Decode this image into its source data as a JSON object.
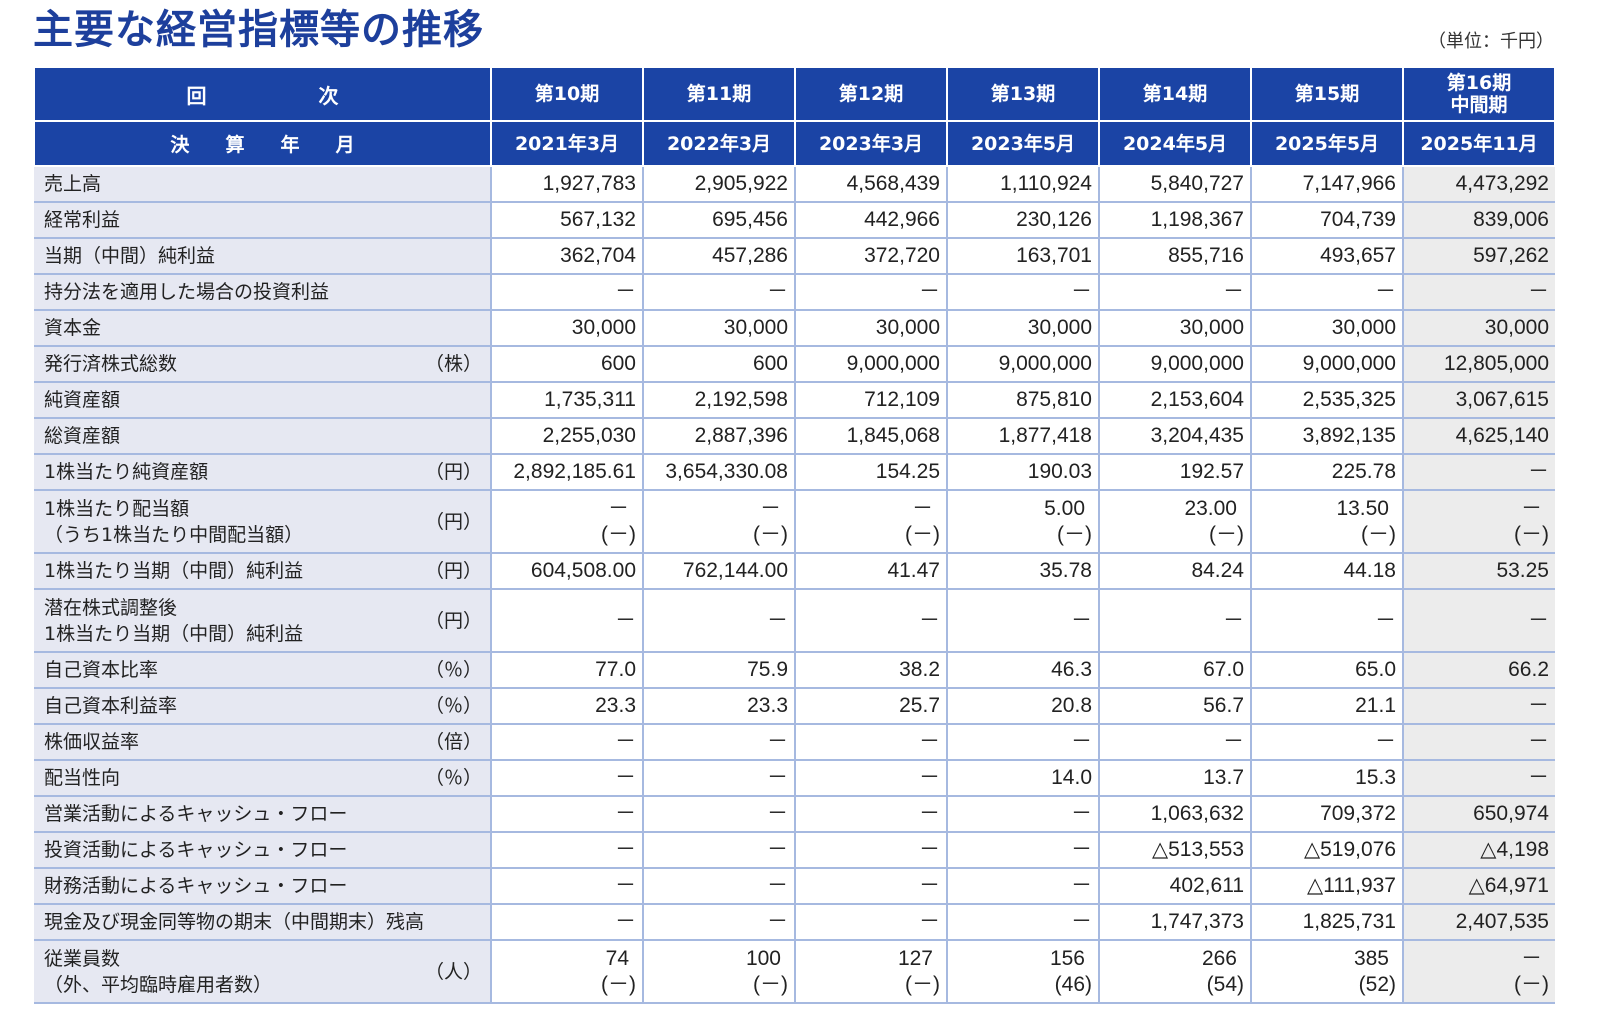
{
  "title": "主要な経営指標等の推移",
  "unit": "（単位：千円）",
  "colors": {
    "title": "#1d3f9c",
    "header_bg": "#1b44a5",
    "label_bg": "#e6e8f2",
    "interim_bg": "#ececec",
    "grid": "#a6b9e0",
    "text": "#222222"
  },
  "table": {
    "header_rows": [
      {
        "label": "回　　次",
        "cells": [
          [
            "第10期"
          ],
          [
            "第11期"
          ],
          [
            "第12期"
          ],
          [
            "第13期"
          ],
          [
            "第14期"
          ],
          [
            "第15期"
          ],
          [
            "第16期",
            "中間期"
          ]
        ]
      },
      {
        "label": "決　算　年　月",
        "cells": [
          [
            "2021年3月"
          ],
          [
            "2022年3月"
          ],
          [
            "2023年3月"
          ],
          [
            "2023年5月"
          ],
          [
            "2024年5月"
          ],
          [
            "2025年5月"
          ],
          [
            "2025年11月"
          ]
        ]
      }
    ],
    "rows": [
      {
        "label": [
          "売上高"
        ],
        "unit": "",
        "values": [
          [
            "1,927,783"
          ],
          [
            "2,905,922"
          ],
          [
            "4,568,439"
          ],
          [
            "1,110,924"
          ],
          [
            "5,840,727"
          ],
          [
            "7,147,966"
          ],
          [
            "4,473,292"
          ]
        ]
      },
      {
        "label": [
          "経常利益"
        ],
        "unit": "",
        "values": [
          [
            "567,132"
          ],
          [
            "695,456"
          ],
          [
            "442,966"
          ],
          [
            "230,126"
          ],
          [
            "1,198,367"
          ],
          [
            "704,739"
          ],
          [
            "839,006"
          ]
        ]
      },
      {
        "label": [
          "当期（中間）純利益"
        ],
        "unit": "",
        "values": [
          [
            "362,704"
          ],
          [
            "457,286"
          ],
          [
            "372,720"
          ],
          [
            "163,701"
          ],
          [
            "855,716"
          ],
          [
            "493,657"
          ],
          [
            "597,262"
          ]
        ]
      },
      {
        "label": [
          "持分法を適用した場合の投資利益"
        ],
        "unit": "",
        "values": [
          [
            "－"
          ],
          [
            "－"
          ],
          [
            "－"
          ],
          [
            "－"
          ],
          [
            "－"
          ],
          [
            "－"
          ],
          [
            "－"
          ]
        ]
      },
      {
        "label": [
          "資本金"
        ],
        "unit": "",
        "values": [
          [
            "30,000"
          ],
          [
            "30,000"
          ],
          [
            "30,000"
          ],
          [
            "30,000"
          ],
          [
            "30,000"
          ],
          [
            "30,000"
          ],
          [
            "30,000"
          ]
        ]
      },
      {
        "label": [
          "発行済株式総数"
        ],
        "unit": "（株）",
        "values": [
          [
            "600"
          ],
          [
            "600"
          ],
          [
            "9,000,000"
          ],
          [
            "9,000,000"
          ],
          [
            "9,000,000"
          ],
          [
            "9,000,000"
          ],
          [
            "12,805,000"
          ]
        ]
      },
      {
        "label": [
          "純資産額"
        ],
        "unit": "",
        "values": [
          [
            "1,735,311"
          ],
          [
            "2,192,598"
          ],
          [
            "712,109"
          ],
          [
            "875,810"
          ],
          [
            "2,153,604"
          ],
          [
            "2,535,325"
          ],
          [
            "3,067,615"
          ]
        ]
      },
      {
        "label": [
          "総資産額"
        ],
        "unit": "",
        "values": [
          [
            "2,255,030"
          ],
          [
            "2,887,396"
          ],
          [
            "1,845,068"
          ],
          [
            "1,877,418"
          ],
          [
            "3,204,435"
          ],
          [
            "3,892,135"
          ],
          [
            "4,625,140"
          ]
        ]
      },
      {
        "label": [
          "1株当たり純資産額"
        ],
        "unit": "（円）",
        "values": [
          [
            "2,892,185.61"
          ],
          [
            "3,654,330.08"
          ],
          [
            "154.25"
          ],
          [
            "190.03"
          ],
          [
            "192.57"
          ],
          [
            "225.78"
          ],
          [
            "－"
          ]
        ]
      },
      {
        "label": [
          "1株当たり配当額",
          "（うち1株当たり中間配当額）"
        ],
        "unit": "（円）",
        "values": [
          [
            "－",
            "(－)"
          ],
          [
            "－",
            "(－)"
          ],
          [
            "－",
            "(－)"
          ],
          [
            "5.00",
            "(－)"
          ],
          [
            "23.00",
            "(－)"
          ],
          [
            "13.50",
            "(－)"
          ],
          [
            "－",
            "(－)"
          ]
        ]
      },
      {
        "label": [
          "1株当たり当期（中間）純利益"
        ],
        "unit": "（円）",
        "values": [
          [
            "604,508.00"
          ],
          [
            "762,144.00"
          ],
          [
            "41.47"
          ],
          [
            "35.78"
          ],
          [
            "84.24"
          ],
          [
            "44.18"
          ],
          [
            "53.25"
          ]
        ]
      },
      {
        "label": [
          "潜在株式調整後",
          "1株当たり当期（中間）純利益"
        ],
        "unit": "（円）",
        "values": [
          [
            "－"
          ],
          [
            "－"
          ],
          [
            "－"
          ],
          [
            "－"
          ],
          [
            "－"
          ],
          [
            "－"
          ],
          [
            "－"
          ]
        ]
      },
      {
        "label": [
          "自己資本比率"
        ],
        "unit": "（％）",
        "values": [
          [
            "77.0"
          ],
          [
            "75.9"
          ],
          [
            "38.2"
          ],
          [
            "46.3"
          ],
          [
            "67.0"
          ],
          [
            "65.0"
          ],
          [
            "66.2"
          ]
        ]
      },
      {
        "label": [
          "自己資本利益率"
        ],
        "unit": "（％）",
        "values": [
          [
            "23.3"
          ],
          [
            "23.3"
          ],
          [
            "25.7"
          ],
          [
            "20.8"
          ],
          [
            "56.7"
          ],
          [
            "21.1"
          ],
          [
            "－"
          ]
        ]
      },
      {
        "label": [
          "株価収益率"
        ],
        "unit": "（倍）",
        "values": [
          [
            "－"
          ],
          [
            "－"
          ],
          [
            "－"
          ],
          [
            "－"
          ],
          [
            "－"
          ],
          [
            "－"
          ],
          [
            "－"
          ]
        ]
      },
      {
        "label": [
          "配当性向"
        ],
        "unit": "（％）",
        "values": [
          [
            "－"
          ],
          [
            "－"
          ],
          [
            "－"
          ],
          [
            "14.0"
          ],
          [
            "13.7"
          ],
          [
            "15.3"
          ],
          [
            "－"
          ]
        ]
      },
      {
        "label": [
          "営業活動によるキャッシュ・フロー"
        ],
        "unit": "",
        "values": [
          [
            "－"
          ],
          [
            "－"
          ],
          [
            "－"
          ],
          [
            "－"
          ],
          [
            "1,063,632"
          ],
          [
            "709,372"
          ],
          [
            "650,974"
          ]
        ]
      },
      {
        "label": [
          "投資活動によるキャッシュ・フロー"
        ],
        "unit": "",
        "values": [
          [
            "－"
          ],
          [
            "－"
          ],
          [
            "－"
          ],
          [
            "－"
          ],
          [
            "△513,553"
          ],
          [
            "△519,076"
          ],
          [
            "△4,198"
          ]
        ]
      },
      {
        "label": [
          "財務活動によるキャッシュ・フロー"
        ],
        "unit": "",
        "values": [
          [
            "－"
          ],
          [
            "－"
          ],
          [
            "－"
          ],
          [
            "－"
          ],
          [
            "402,611"
          ],
          [
            "△111,937"
          ],
          [
            "△64,971"
          ]
        ]
      },
      {
        "label": [
          "現金及び現金同等物の期末（中間期末）残高"
        ],
        "unit": "",
        "values": [
          [
            "－"
          ],
          [
            "－"
          ],
          [
            "－"
          ],
          [
            "－"
          ],
          [
            "1,747,373"
          ],
          [
            "1,825,731"
          ],
          [
            "2,407,535"
          ]
        ]
      },
      {
        "label": [
          "従業員数",
          "（外、平均臨時雇用者数）"
        ],
        "unit": "（人）",
        "values": [
          [
            "74",
            "(－)"
          ],
          [
            "100",
            "(－)"
          ],
          [
            "127",
            "(－)"
          ],
          [
            "156",
            "(46)"
          ],
          [
            "266",
            "(54)"
          ],
          [
            "385",
            "(52)"
          ],
          [
            "－",
            "(－)"
          ]
        ]
      }
    ]
  }
}
